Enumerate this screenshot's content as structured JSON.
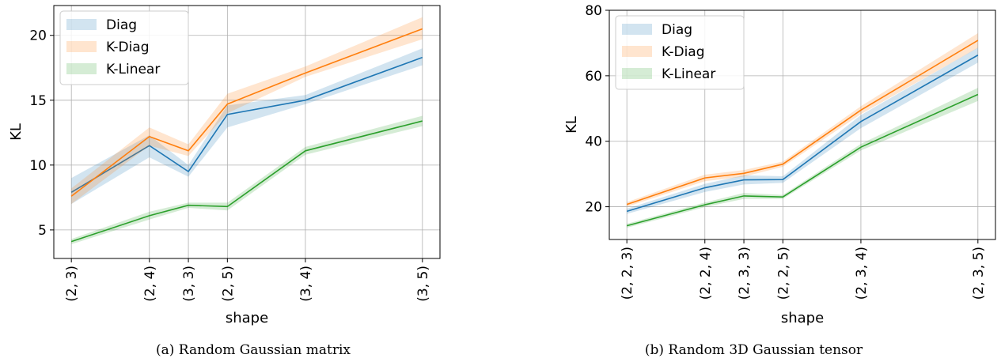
{
  "chart_data": [
    {
      "type": "line",
      "caption": "(a) Random Gaussian matrix",
      "xlabel": "shape",
      "ylabel": "KL",
      "categories": [
        "(2, 3)",
        "(2, 4)",
        "(3, 3)",
        "(2, 5)",
        "(3, 4)",
        "(3, 5)"
      ],
      "x": [
        6,
        8,
        9,
        10,
        12,
        15
      ],
      "yticks": [
        5,
        10,
        15,
        20
      ],
      "ylim": [
        2.8,
        22.3
      ],
      "grid": true,
      "legend_position": "upper-left",
      "series": [
        {
          "name": "Diag",
          "color": "#1f77b4",
          "values": [
            7.9,
            11.5,
            9.5,
            13.9,
            15.0,
            18.3
          ],
          "lower": [
            7.0,
            10.6,
            9.1,
            12.9,
            14.7,
            17.7
          ],
          "upper": [
            9.0,
            12.3,
            10.0,
            14.6,
            15.4,
            19.0
          ]
        },
        {
          "name": "K-Diag",
          "color": "#ff7f0e",
          "values": [
            7.6,
            12.2,
            11.1,
            14.7,
            17.1,
            20.5
          ],
          "lower": [
            7.0,
            11.5,
            10.7,
            14.0,
            16.8,
            19.7
          ],
          "upper": [
            8.2,
            12.9,
            11.6,
            15.5,
            17.6,
            21.4
          ]
        },
        {
          "name": "K-Linear",
          "color": "#2ca02c",
          "values": [
            4.1,
            6.1,
            6.9,
            6.8,
            11.1,
            13.4
          ],
          "lower": [
            3.9,
            5.8,
            6.7,
            6.5,
            10.8,
            13.0
          ],
          "upper": [
            4.3,
            6.4,
            7.1,
            7.1,
            11.4,
            13.8
          ]
        }
      ]
    },
    {
      "type": "line",
      "caption": "(b) Random 3D Gaussian tensor",
      "xlabel": "shape",
      "ylabel": "KL",
      "categories": [
        "(2, 2, 3)",
        "(2, 2, 4)",
        "(2, 3, 3)",
        "(2, 2, 5)",
        "(2, 3, 4)",
        "(2, 3, 5)"
      ],
      "x": [
        12,
        16,
        18,
        20,
        24,
        30
      ],
      "yticks": [
        20,
        40,
        60,
        80
      ],
      "ylim": [
        10,
        80
      ],
      "grid": true,
      "legend_position": "upper-left",
      "series": [
        {
          "name": "Diag",
          "color": "#1f77b4",
          "values": [
            18.6,
            25.8,
            28.2,
            28.3,
            46.0,
            66.3
          ],
          "lower": [
            17.8,
            24.5,
            26.8,
            27.3,
            44.0,
            64.0
          ],
          "upper": [
            19.4,
            27.0,
            29.6,
            29.3,
            48.0,
            68.6
          ]
        },
        {
          "name": "K-Diag",
          "color": "#ff7f0e",
          "values": [
            20.7,
            28.8,
            30.2,
            33.0,
            49.5,
            70.8
          ],
          "lower": [
            20.0,
            27.8,
            29.2,
            32.2,
            48.3,
            68.5
          ],
          "upper": [
            21.4,
            29.8,
            31.2,
            33.8,
            50.7,
            73.0
          ]
        },
        {
          "name": "K-Linear",
          "color": "#2ca02c",
          "values": [
            14.2,
            20.6,
            23.3,
            23.0,
            38.2,
            54.3
          ],
          "lower": [
            13.6,
            19.9,
            22.4,
            22.4,
            37.2,
            52.3
          ],
          "upper": [
            14.8,
            21.3,
            24.2,
            23.6,
            39.2,
            56.3
          ]
        }
      ]
    }
  ]
}
